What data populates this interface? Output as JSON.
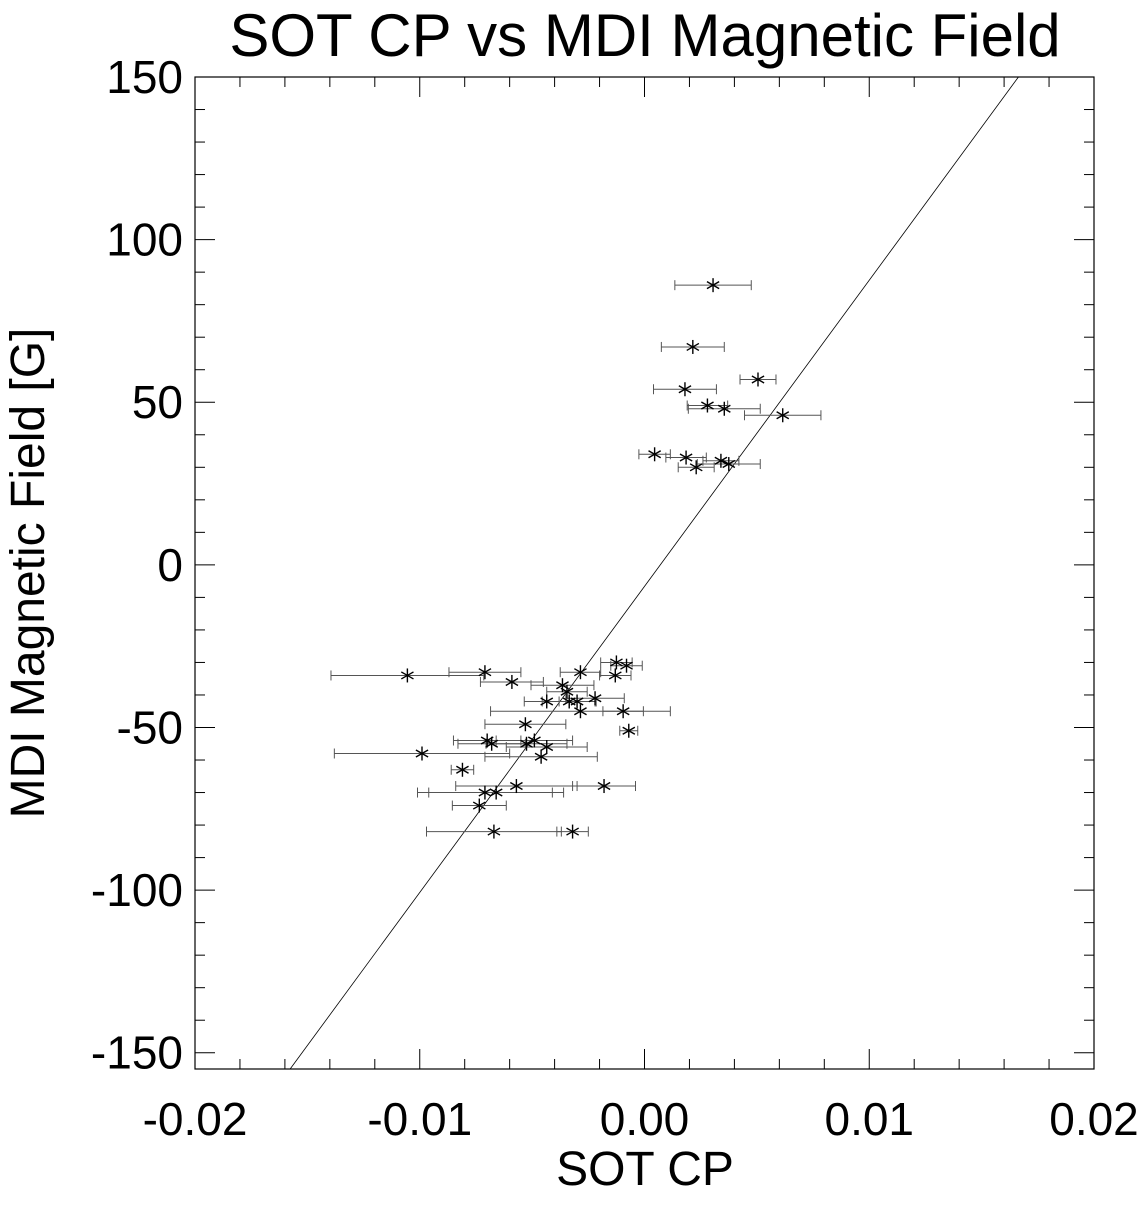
{
  "chart_data": {
    "type": "scatter",
    "title": "SOT CP vs MDI Magnetic Field",
    "xlabel": "SOT CP",
    "ylabel": "MDI Magnetic Field [G]",
    "xlim": [
      -0.02,
      0.02
    ],
    "ylim": [
      -155,
      150
    ],
    "xticks": [
      -0.02,
      -0.01,
      0.0,
      0.01,
      0.02
    ],
    "xtick_labels": [
      "-0.02",
      "-0.01",
      "0.00",
      "0.01",
      "0.02"
    ],
    "yticks": [
      150,
      100,
      50,
      0,
      -50,
      -100,
      -150
    ],
    "ytick_labels": [
      "150",
      "100",
      "50",
      "0",
      "-50",
      "-100",
      "-150"
    ],
    "grid": false,
    "marker": "asterisk",
    "fit_line": {
      "slope": 9412,
      "intercept": -6.6
    },
    "points": [
      {
        "x": 0.00305,
        "y": 86,
        "xerr": 0.0017
      },
      {
        "x": 0.00215,
        "y": 67,
        "xerr": 0.0014
      },
      {
        "x": 0.00505,
        "y": 57,
        "xerr": 0.0008
      },
      {
        "x": 0.0018,
        "y": 54,
        "xerr": 0.0014
      },
      {
        "x": 0.0028,
        "y": 49,
        "xerr": 0.0009
      },
      {
        "x": 0.00355,
        "y": 48,
        "xerr": 0.0016
      },
      {
        "x": 0.00615,
        "y": 46,
        "xerr": 0.0017
      },
      {
        "x": 0.00045,
        "y": 34,
        "xerr": 0.0007
      },
      {
        "x": 0.00185,
        "y": 33,
        "xerr": 0.0009
      },
      {
        "x": 0.0034,
        "y": 32,
        "xerr": 0.0008
      },
      {
        "x": 0.00375,
        "y": 31,
        "xerr": 0.0014
      },
      {
        "x": 0.0023,
        "y": 30,
        "xerr": 0.0008
      },
      {
        "x": -0.00125,
        "y": -30,
        "xerr": 0.0007
      },
      {
        "x": -0.0008,
        "y": -31,
        "xerr": 0.0007
      },
      {
        "x": -0.01055,
        "y": -34,
        "xerr": 0.0034
      },
      {
        "x": -0.0071,
        "y": -33,
        "xerr": 0.0016
      },
      {
        "x": -0.00285,
        "y": -33,
        "xerr": 0.0009
      },
      {
        "x": -0.0013,
        "y": -34,
        "xerr": 0.0007
      },
      {
        "x": -0.0059,
        "y": -36,
        "xerr": 0.0014
      },
      {
        "x": -0.00365,
        "y": -37,
        "xerr": 0.0014
      },
      {
        "x": -0.00345,
        "y": -39,
        "xerr": 0.0009
      },
      {
        "x": -0.00335,
        "y": -42,
        "xerr": 0.0012
      },
      {
        "x": -0.00435,
        "y": -42,
        "xerr": 0.001
      },
      {
        "x": -0.003,
        "y": -42,
        "xerr": 0.0008
      },
      {
        "x": -0.0022,
        "y": -41,
        "xerr": 0.0013
      },
      {
        "x": -0.00285,
        "y": -45,
        "xerr": 0.004
      },
      {
        "x": -0.00095,
        "y": -45,
        "xerr": 0.0009
      },
      {
        "x": -0.0053,
        "y": -49,
        "xerr": 0.0018
      },
      {
        "x": -0.0007,
        "y": -51,
        "xerr": 0.0004
      },
      {
        "x": -0.0049,
        "y": -54,
        "xerr": 0.0017
      },
      {
        "x": -0.007,
        "y": -54,
        "xerr": 0.0015
      },
      {
        "x": -0.00525,
        "y": -55,
        "xerr": 0.0018
      },
      {
        "x": -0.0068,
        "y": -55,
        "xerr": 0.0015
      },
      {
        "x": -0.00435,
        "y": -56,
        "xerr": 0.0018
      },
      {
        "x": -0.0099,
        "y": -58,
        "xerr": 0.0039
      },
      {
        "x": -0.0046,
        "y": -59,
        "xerr": 0.0025
      },
      {
        "x": -0.0081,
        "y": -63,
        "xerr": 0.0005
      },
      {
        "x": -0.0057,
        "y": -68,
        "xerr": 0.0027
      },
      {
        "x": -0.0018,
        "y": -68,
        "xerr": 0.0014
      },
      {
        "x": -0.0071,
        "y": -70,
        "xerr": 0.003
      },
      {
        "x": -0.0066,
        "y": -70,
        "xerr": 0.003
      },
      {
        "x": -0.00735,
        "y": -74,
        "xerr": 0.0012
      },
      {
        "x": -0.0032,
        "y": -82,
        "xerr": 0.0007
      },
      {
        "x": -0.0067,
        "y": -82,
        "xerr": 0.003
      }
    ]
  }
}
